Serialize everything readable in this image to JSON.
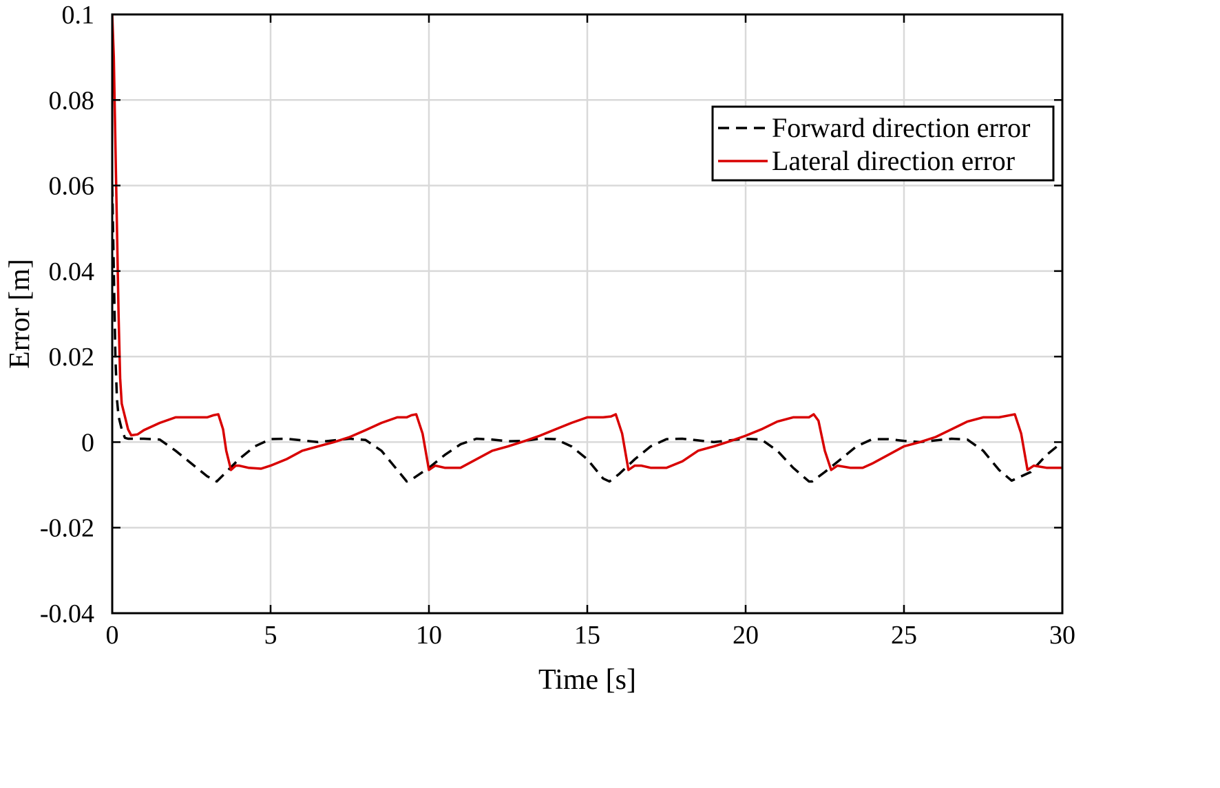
{
  "chart_data": {
    "type": "line",
    "title": "",
    "xlabel": "Time [s]",
    "ylabel": "Error [m]",
    "xlim": [
      0,
      30
    ],
    "ylim": [
      -0.04,
      0.1
    ],
    "xticks": [
      0,
      5,
      10,
      15,
      20,
      25,
      30
    ],
    "yticks": [
      -0.04,
      -0.02,
      0,
      0.02,
      0.04,
      0.06,
      0.08,
      0.1
    ],
    "xtick_labels": [
      "0",
      "5",
      "10",
      "15",
      "20",
      "25",
      "30"
    ],
    "ytick_labels": [
      "-0.04",
      "-0.02",
      "0",
      "0.02",
      "0.04",
      "0.06",
      "0.08",
      "0.1"
    ],
    "grid": true,
    "legend_position": "top-right",
    "series": [
      {
        "name": "Forward direction error",
        "color": "#000000",
        "style": "dashed",
        "x": [
          0.0,
          0.05,
          0.1,
          0.15,
          0.2,
          0.3,
          0.4,
          0.5,
          0.7,
          1.0,
          1.5,
          2.0,
          2.5,
          3.0,
          3.3,
          3.6,
          4.0,
          4.5,
          5.0,
          5.5,
          6.0,
          6.5,
          7.0,
          7.5,
          8.0,
          8.5,
          9.0,
          9.3,
          9.5,
          10.0,
          10.5,
          11.0,
          11.5,
          12.0,
          12.5,
          13.0,
          13.5,
          14.0,
          14.5,
          15.0,
          15.5,
          15.7,
          16.0,
          16.5,
          17.0,
          17.5,
          18.0,
          18.5,
          19.0,
          19.5,
          20.0,
          20.5,
          21.0,
          21.5,
          22.0,
          22.1,
          22.5,
          23.0,
          23.5,
          24.0,
          24.5,
          25.0,
          25.5,
          26.0,
          26.5,
          27.0,
          27.5,
          28.0,
          28.4,
          29.0,
          29.5,
          30.0
        ],
        "y": [
          0.06,
          0.04,
          0.02,
          0.01,
          0.006,
          0.003,
          0.001,
          0.0008,
          0.0008,
          0.0008,
          0.0006,
          -0.002,
          -0.005,
          -0.008,
          -0.0092,
          -0.007,
          -0.004,
          -0.001,
          0.0007,
          0.0008,
          0.0004,
          0.0,
          0.0004,
          0.0008,
          0.0005,
          -0.002,
          -0.0065,
          -0.0092,
          -0.0085,
          -0.006,
          -0.003,
          -0.0005,
          0.0008,
          0.0006,
          0.0002,
          0.0003,
          0.0008,
          0.0007,
          -0.001,
          -0.004,
          -0.0085,
          -0.0092,
          -0.0075,
          -0.004,
          -0.001,
          0.0007,
          0.0008,
          0.0004,
          0.0,
          0.0004,
          0.0008,
          0.0006,
          -0.002,
          -0.006,
          -0.0092,
          -0.0092,
          -0.007,
          -0.004,
          -0.001,
          0.0007,
          0.0007,
          0.0003,
          0.0,
          0.0004,
          0.0008,
          0.0006,
          -0.002,
          -0.0065,
          -0.009,
          -0.007,
          -0.003,
          0.0
        ]
      },
      {
        "name": "Lateral direction error",
        "color": "#d80000",
        "style": "solid",
        "x": [
          0.0,
          0.05,
          0.1,
          0.15,
          0.2,
          0.25,
          0.3,
          0.4,
          0.5,
          0.6,
          0.8,
          1.0,
          1.5,
          2.0,
          2.5,
          3.0,
          3.2,
          3.35,
          3.5,
          3.6,
          3.75,
          3.9,
          4.0,
          4.3,
          4.7,
          5.0,
          5.5,
          6.0,
          6.5,
          7.0,
          7.5,
          8.0,
          8.5,
          9.0,
          9.3,
          9.45,
          9.6,
          9.8,
          10.0,
          10.2,
          10.5,
          11.0,
          11.5,
          12.0,
          12.5,
          13.0,
          13.5,
          14.0,
          14.5,
          15.0,
          15.5,
          15.75,
          15.9,
          16.1,
          16.3,
          16.5,
          16.7,
          17.0,
          17.5,
          18.0,
          18.5,
          19.0,
          19.5,
          20.0,
          20.5,
          21.0,
          21.5,
          22.0,
          22.15,
          22.3,
          22.5,
          22.7,
          22.9,
          23.3,
          23.7,
          24.0,
          24.5,
          25.0,
          25.5,
          26.0,
          26.5,
          27.0,
          27.5,
          28.0,
          28.35,
          28.5,
          28.7,
          28.9,
          29.1,
          29.5,
          30.0
        ],
        "y": [
          0.1,
          0.09,
          0.07,
          0.05,
          0.03,
          0.015,
          0.009,
          0.006,
          0.003,
          0.0016,
          0.0018,
          0.0028,
          0.0045,
          0.0058,
          0.0058,
          0.0058,
          0.0063,
          0.0065,
          0.003,
          -0.002,
          -0.0065,
          -0.0055,
          -0.0055,
          -0.006,
          -0.0062,
          -0.0055,
          -0.004,
          -0.002,
          -0.001,
          0.0,
          0.0012,
          0.0028,
          0.0045,
          0.0058,
          0.0058,
          0.0063,
          0.0065,
          0.002,
          -0.0065,
          -0.0055,
          -0.006,
          -0.006,
          -0.004,
          -0.002,
          -0.001,
          0.0002,
          0.0015,
          0.003,
          0.0045,
          0.0058,
          0.0058,
          0.006,
          0.0065,
          0.002,
          -0.0065,
          -0.0055,
          -0.0055,
          -0.006,
          -0.006,
          -0.0045,
          -0.002,
          -0.001,
          0.0002,
          0.0015,
          0.003,
          0.0048,
          0.0058,
          0.0058,
          0.0065,
          0.005,
          -0.002,
          -0.0065,
          -0.0055,
          -0.006,
          -0.006,
          -0.005,
          -0.003,
          -0.001,
          0.0,
          0.0012,
          0.003,
          0.0048,
          0.0058,
          0.0058,
          0.0063,
          0.0065,
          0.002,
          -0.0065,
          -0.0055,
          -0.006,
          -0.006
        ]
      }
    ]
  }
}
